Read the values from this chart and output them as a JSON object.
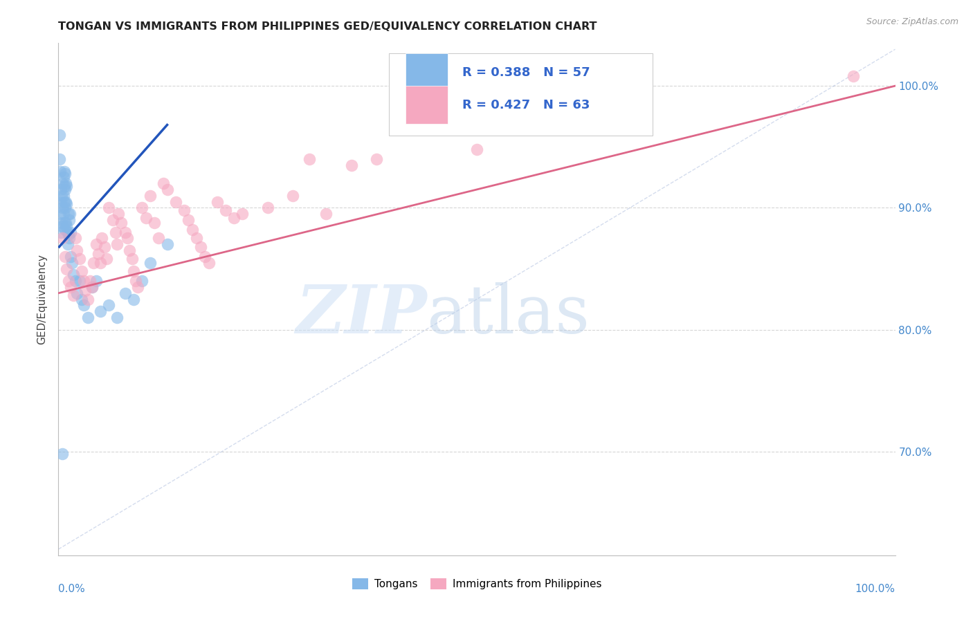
{
  "title": "TONGAN VS IMMIGRANTS FROM PHILIPPINES GED/EQUIVALENCY CORRELATION CHART",
  "source": "Source: ZipAtlas.com",
  "ylabel": "GED/Equivalency",
  "legend_r1": "R = 0.388",
  "legend_n1": "N = 57",
  "legend_r2": "R = 0.427",
  "legend_n2": "N = 63",
  "legend_label1": "Tongans",
  "legend_label2": "Immigrants from Philippines",
  "blue_color": "#85b8e8",
  "pink_color": "#f5a8c0",
  "blue_line_color": "#2255bb",
  "pink_line_color": "#dd6688",
  "xlim": [
    0.0,
    1.0
  ],
  "ylim": [
    0.615,
    1.035
  ],
  "yticks": [
    0.7,
    0.8,
    0.9,
    1.0
  ],
  "ytick_labels": [
    "70.0%",
    "80.0%",
    "90.0%",
    "100.0%"
  ],
  "tongans_x": [
    0.001,
    0.001,
    0.002,
    0.002,
    0.003,
    0.003,
    0.003,
    0.004,
    0.004,
    0.005,
    0.005,
    0.005,
    0.006,
    0.006,
    0.006,
    0.007,
    0.007,
    0.007,
    0.007,
    0.008,
    0.008,
    0.008,
    0.008,
    0.009,
    0.009,
    0.009,
    0.01,
    0.01,
    0.01,
    0.011,
    0.011,
    0.012,
    0.012,
    0.013,
    0.013,
    0.014,
    0.015,
    0.015,
    0.016,
    0.018,
    0.02,
    0.022,
    0.025,
    0.028,
    0.03,
    0.035,
    0.04,
    0.045,
    0.05,
    0.06,
    0.07,
    0.08,
    0.09,
    0.1,
    0.11,
    0.13,
    0.005
  ],
  "tongans_y": [
    0.96,
    0.94,
    0.93,
    0.895,
    0.915,
    0.905,
    0.88,
    0.91,
    0.888,
    0.92,
    0.9,
    0.885,
    0.925,
    0.91,
    0.895,
    0.93,
    0.918,
    0.905,
    0.888,
    0.928,
    0.915,
    0.9,
    0.882,
    0.92,
    0.905,
    0.888,
    0.918,
    0.903,
    0.885,
    0.88,
    0.87,
    0.895,
    0.878,
    0.89,
    0.875,
    0.895,
    0.88,
    0.86,
    0.855,
    0.845,
    0.84,
    0.83,
    0.84,
    0.825,
    0.82,
    0.81,
    0.835,
    0.84,
    0.815,
    0.82,
    0.81,
    0.83,
    0.825,
    0.84,
    0.855,
    0.87,
    0.698
  ],
  "philippines_x": [
    0.005,
    0.008,
    0.01,
    0.012,
    0.015,
    0.018,
    0.02,
    0.022,
    0.025,
    0.028,
    0.03,
    0.032,
    0.035,
    0.038,
    0.04,
    0.042,
    0.045,
    0.048,
    0.05,
    0.052,
    0.055,
    0.058,
    0.06,
    0.065,
    0.068,
    0.07,
    0.072,
    0.075,
    0.08,
    0.082,
    0.085,
    0.088,
    0.09,
    0.092,
    0.095,
    0.1,
    0.105,
    0.11,
    0.115,
    0.12,
    0.125,
    0.13,
    0.14,
    0.15,
    0.155,
    0.16,
    0.165,
    0.17,
    0.175,
    0.18,
    0.19,
    0.2,
    0.21,
    0.22,
    0.25,
    0.28,
    0.3,
    0.32,
    0.35,
    0.38,
    0.5,
    0.62,
    0.95
  ],
  "philippines_y": [
    0.875,
    0.86,
    0.85,
    0.84,
    0.835,
    0.828,
    0.875,
    0.865,
    0.858,
    0.848,
    0.84,
    0.832,
    0.825,
    0.84,
    0.835,
    0.855,
    0.87,
    0.862,
    0.855,
    0.875,
    0.868,
    0.858,
    0.9,
    0.89,
    0.88,
    0.87,
    0.895,
    0.888,
    0.88,
    0.875,
    0.865,
    0.858,
    0.848,
    0.84,
    0.835,
    0.9,
    0.892,
    0.91,
    0.888,
    0.875,
    0.92,
    0.915,
    0.905,
    0.898,
    0.89,
    0.882,
    0.875,
    0.868,
    0.86,
    0.855,
    0.905,
    0.898,
    0.892,
    0.895,
    0.9,
    0.91,
    0.94,
    0.895,
    0.935,
    0.94,
    0.948,
    1.008,
    1.008
  ],
  "blue_trendline_x": [
    0.001,
    0.13
  ],
  "blue_trendline_y": [
    0.868,
    0.968
  ],
  "pink_trendline_x": [
    0.0,
    1.0
  ],
  "pink_trendline_y": [
    0.83,
    1.0
  ]
}
